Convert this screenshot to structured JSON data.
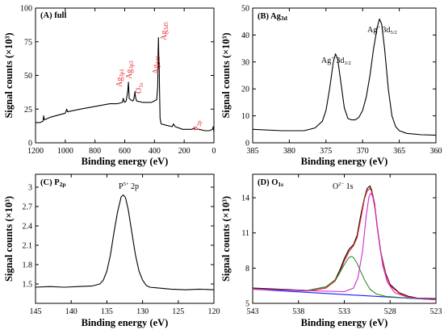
{
  "chart_data": [
    {
      "type": "line",
      "panel_label": "(A) full",
      "xlabel": "Binding energy (eV)",
      "ylabel": "Signal counts (×10³)",
      "xlim": [
        1200,
        0
      ],
      "ylim": [
        0,
        100
      ],
      "x_reversed": true,
      "xticks": [
        1200,
        1000,
        800,
        600,
        400,
        200,
        0
      ],
      "yticks": [
        0,
        25,
        50,
        75,
        100
      ],
      "series": [
        {
          "color": "#000000",
          "x": [
            1200,
            1170,
            1150,
            1145,
            1140,
            1100,
            1000,
            990,
            985,
            900,
            800,
            700,
            650,
            615,
            610,
            605,
            600,
            590,
            580,
            575,
            573,
            570,
            560,
            545,
            540,
            533,
            531,
            528,
            520,
            480,
            420,
            385,
            378,
            376,
            373,
            370,
            368,
            366,
            362,
            355,
            320,
            280,
            272,
            260,
            210,
            150,
            133,
            130,
            100,
            60,
            30,
            10,
            5,
            0
          ],
          "y": [
            15,
            15,
            16,
            20,
            17,
            19,
            22,
            25,
            23,
            25,
            27,
            29,
            29,
            30,
            33,
            31,
            30,
            31,
            38,
            45,
            40,
            33,
            32,
            31,
            32,
            36,
            38,
            34,
            31,
            30,
            30,
            32,
            42,
            65,
            78,
            55,
            60,
            40,
            18,
            14,
            13,
            12,
            14,
            12,
            10,
            10,
            11,
            10,
            10,
            9,
            9,
            10,
            12,
            8
          ]
        }
      ],
      "annotations": [
        {
          "text": "Ag3p1",
          "color": "#e8232a"
        },
        {
          "text": "Ag3p3",
          "color": "#e8232a"
        },
        {
          "text": "O1s",
          "color": "#e8232a"
        },
        {
          "text": "Ag3d3",
          "color": "#e8232a"
        },
        {
          "text": "Ag3d5",
          "color": "#e8232a"
        },
        {
          "text": "P2p",
          "color": "#e8232a"
        }
      ]
    },
    {
      "type": "line",
      "panel_label": "(B) Ag3d",
      "xlabel": "Binding energy (eV)",
      "ylabel": "Signal counts (×10³)",
      "xlim": [
        385,
        360
      ],
      "ylim": [
        0,
        50
      ],
      "x_reversed": true,
      "xticks": [
        385,
        380,
        375,
        370,
        365,
        360
      ],
      "yticks": [
        0,
        10,
        20,
        30,
        40,
        50
      ],
      "series": [
        {
          "color": "#000000",
          "x": [
            385,
            381,
            378,
            376.5,
            375.5,
            375,
            374.5,
            374,
            373.7,
            373.4,
            373,
            372.5,
            372,
            371.5,
            371,
            370.5,
            370,
            369.5,
            369,
            368.5,
            368,
            367.7,
            367.4,
            367,
            366.5,
            366,
            365.5,
            365,
            364,
            362,
            360
          ],
          "y": [
            5,
            4.5,
            4.5,
            5.5,
            8,
            12,
            20,
            30,
            33,
            31,
            23,
            13,
            9,
            8.5,
            8.5,
            9.5,
            12,
            17,
            25,
            35,
            43,
            46,
            44,
            35,
            20,
            10,
            6,
            4.5,
            3.5,
            3,
            2.8
          ]
        }
      ],
      "annotations": [
        {
          "text": "Ag⁺ 3d3/2",
          "color": "#000000"
        },
        {
          "text": "Ag⁺ 3d5/2",
          "color": "#000000"
        }
      ]
    },
    {
      "type": "line",
      "panel_label": "(C) P2p",
      "xlabel": "Binding energy (eV)",
      "ylabel": "Signal counts (×10³)",
      "xlim": [
        145,
        120
      ],
      "ylim": [
        1.2,
        3.2
      ],
      "x_reversed": true,
      "xticks": [
        145,
        140,
        135,
        130,
        125,
        120
      ],
      "yticks": [
        1.5,
        1.8,
        2.1,
        2.4,
        2.7,
        3.0
      ],
      "series": [
        {
          "color": "#000000",
          "x": [
            145,
            143,
            141,
            139,
            137,
            136,
            135.5,
            135,
            134.5,
            134,
            133.5,
            133,
            132.7,
            132.4,
            132,
            131.5,
            131,
            130.5,
            130,
            129.5,
            129,
            128,
            126,
            124,
            122,
            120
          ],
          "y": [
            1.45,
            1.46,
            1.45,
            1.46,
            1.47,
            1.5,
            1.56,
            1.7,
            1.95,
            2.3,
            2.62,
            2.85,
            2.88,
            2.84,
            2.65,
            2.3,
            1.95,
            1.7,
            1.56,
            1.48,
            1.45,
            1.44,
            1.42,
            1.41,
            1.42,
            1.41
          ]
        }
      ],
      "annotations": [
        {
          "text": "P⁵⁺ 2p",
          "color": "#000000"
        }
      ]
    },
    {
      "type": "line",
      "panel_label": "(D) O1s",
      "xlabel": "Binding energy (eV)",
      "ylabel": "Signal counts (×10³)",
      "xlim": [
        543,
        523
      ],
      "ylim": [
        5,
        16
      ],
      "x_reversed": true,
      "xticks": [
        543,
        538,
        533,
        528,
        523
      ],
      "yticks": [
        5,
        8,
        11,
        14
      ],
      "series": [
        {
          "color": "#000000",
          "x": [
            543,
            540,
            537,
            535,
            534,
            533.5,
            533,
            532.5,
            532,
            531.6,
            531.2,
            530.8,
            530.5,
            530.2,
            530,
            529.7,
            529.4,
            529,
            528.5,
            528,
            527,
            526,
            525,
            523
          ],
          "y": [
            6.3,
            6.2,
            6.1,
            6.4,
            7.0,
            7.8,
            8.8,
            9.6,
            10.0,
            10.8,
            12.5,
            14.0,
            14.8,
            15.0,
            14.6,
            13.5,
            11.5,
            9.3,
            7.6,
            6.6,
            5.9,
            5.6,
            5.45,
            5.4
          ]
        },
        {
          "color": "#e8232a",
          "x": [
            543,
            540,
            537,
            535,
            534,
            533.5,
            533,
            532.5,
            532,
            531.6,
            531.2,
            530.8,
            530.5,
            530.2,
            530,
            529.7,
            529.4,
            529,
            528.5,
            528,
            527,
            526,
            525,
            523
          ],
          "y": [
            6.25,
            6.15,
            6.05,
            6.3,
            6.9,
            7.6,
            8.6,
            9.4,
            9.9,
            10.6,
            12.2,
            13.9,
            14.6,
            14.8,
            14.5,
            13.4,
            11.4,
            9.2,
            7.5,
            6.5,
            5.85,
            5.55,
            5.4,
            5.35
          ]
        },
        {
          "color": "#1a1aff",
          "x": [
            543,
            523
          ],
          "y": [
            6.2,
            5.3
          ]
        },
        {
          "color": "#2e8b2e",
          "x": [
            543,
            537,
            535,
            534,
            533.5,
            533,
            532.5,
            532.2,
            532,
            531.6,
            531.2,
            530.8,
            530.2,
            529.5,
            528.5,
            527,
            523
          ],
          "y": [
            6.2,
            6.1,
            6.4,
            7.0,
            7.6,
            8.3,
            8.9,
            9.0,
            8.9,
            8.4,
            7.7,
            7.0,
            6.2,
            5.8,
            5.6,
            5.5,
            5.3
          ]
        },
        {
          "color": "#d12ad1",
          "x": [
            543,
            533,
            532,
            531.5,
            531,
            530.6,
            530.3,
            530.1,
            529.9,
            529.6,
            529.2,
            528.8,
            528.3,
            527.5,
            526,
            523
          ],
          "y": [
            6.2,
            6.0,
            6.3,
            7.2,
            9.5,
            12.5,
            14.1,
            14.4,
            14.1,
            12.8,
            10.3,
            8.2,
            6.8,
            5.9,
            5.5,
            5.3
          ]
        }
      ],
      "annotations": [
        {
          "text": "O²⁻ 1s",
          "color": "#000000"
        }
      ]
    }
  ]
}
